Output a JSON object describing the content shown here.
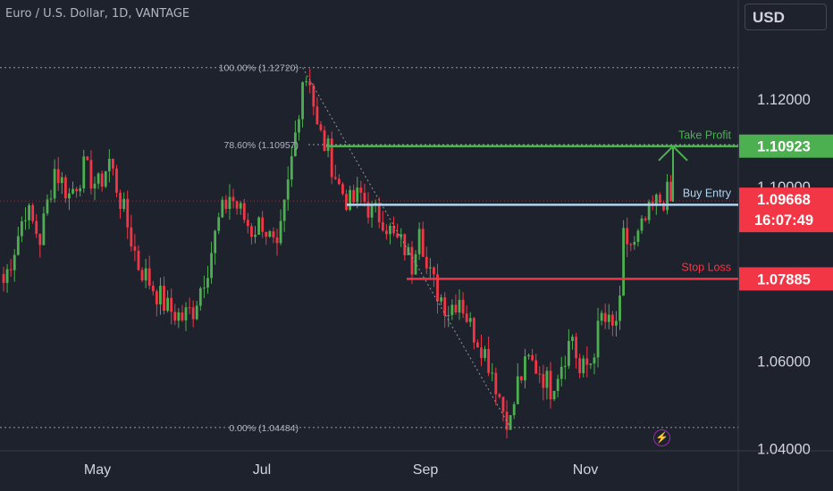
{
  "header": {
    "title": "Euro / U.S. Dollar, 1D, VANTAGE",
    "currency_button": "USD"
  },
  "chart_data": {
    "type": "candlestick",
    "title": "Euro / U.S. Dollar, 1D, VANTAGE",
    "ylim": [
      1.0395,
      1.1345
    ],
    "y_ticks": [
      "1.12000",
      "1.10000",
      "1.06000",
      "1.04000"
    ],
    "x_ticks": [
      "May",
      "Jul",
      "Sep",
      "Nov"
    ],
    "fibonacci": [
      {
        "label": "100.00% (1.12720)",
        "value": 1.1272
      },
      {
        "label": "78.60% (1.10957)",
        "value": 1.10957
      },
      {
        "label": "0.00% (1.04484)",
        "value": 1.04484
      }
    ],
    "levels": [
      {
        "name": "Take Profit",
        "value": 1.10923,
        "price_label": "1.10923",
        "color": "#4caf50"
      },
      {
        "name": "Buy Entry",
        "value": 1.0958,
        "price_label": "",
        "color": "#b3d4f0"
      },
      {
        "name": "Stop Loss",
        "value": 1.07885,
        "price_label": "1.07885",
        "color": "#f23645"
      }
    ],
    "current_price": {
      "value": 1.09668,
      "label": "1.09668",
      "countdown": "16:07:49",
      "color": "#f23645"
    },
    "anchor_points": [
      {
        "i": 0,
        "v": 1.078
      },
      {
        "i": 3,
        "v": 1.086
      },
      {
        "i": 6,
        "v": 1.095
      },
      {
        "i": 10,
        "v": 1.088
      },
      {
        "i": 14,
        "v": 1.104
      },
      {
        "i": 18,
        "v": 1.098
      },
      {
        "i": 22,
        "v": 1.104
      },
      {
        "i": 26,
        "v": 1.1
      },
      {
        "i": 29,
        "v": 1.106
      },
      {
        "i": 33,
        "v": 1.094
      },
      {
        "i": 37,
        "v": 1.082
      },
      {
        "i": 41,
        "v": 1.077
      },
      {
        "i": 45,
        "v": 1.072
      },
      {
        "i": 49,
        "v": 1.07
      },
      {
        "i": 52,
        "v": 1.072
      },
      {
        "i": 56,
        "v": 1.082
      },
      {
        "i": 59,
        "v": 1.092
      },
      {
        "i": 62,
        "v": 1.098
      },
      {
        "i": 65,
        "v": 1.094
      },
      {
        "i": 68,
        "v": 1.09
      },
      {
        "i": 71,
        "v": 1.092
      },
      {
        "i": 75,
        "v": 1.084
      },
      {
        "i": 78,
        "v": 1.1
      },
      {
        "i": 80,
        "v": 1.112
      },
      {
        "i": 82,
        "v": 1.125
      },
      {
        "i": 84,
        "v": 1.125
      },
      {
        "i": 86,
        "v": 1.113
      },
      {
        "i": 89,
        "v": 1.108
      },
      {
        "i": 92,
        "v": 1.1
      },
      {
        "i": 95,
        "v": 1.096
      },
      {
        "i": 98,
        "v": 1.098
      },
      {
        "i": 101,
        "v": 1.094
      },
      {
        "i": 104,
        "v": 1.093
      },
      {
        "i": 107,
        "v": 1.088
      },
      {
        "i": 110,
        "v": 1.086
      },
      {
        "i": 112,
        "v": 1.082
      },
      {
        "i": 114,
        "v": 1.093
      },
      {
        "i": 116,
        "v": 1.081
      },
      {
        "i": 119,
        "v": 1.076
      },
      {
        "i": 122,
        "v": 1.072
      },
      {
        "i": 125,
        "v": 1.075
      },
      {
        "i": 128,
        "v": 1.068
      },
      {
        "i": 131,
        "v": 1.064
      },
      {
        "i": 134,
        "v": 1.058
      },
      {
        "i": 137,
        "v": 1.049
      },
      {
        "i": 139,
        "v": 1.046
      },
      {
        "i": 141,
        "v": 1.055
      },
      {
        "i": 144,
        "v": 1.06
      },
      {
        "i": 147,
        "v": 1.058
      },
      {
        "i": 150,
        "v": 1.054
      },
      {
        "i": 153,
        "v": 1.06
      },
      {
        "i": 156,
        "v": 1.066
      },
      {
        "i": 158,
        "v": 1.057
      },
      {
        "i": 161,
        "v": 1.06
      },
      {
        "i": 164,
        "v": 1.07
      },
      {
        "i": 167,
        "v": 1.067
      },
      {
        "i": 169,
        "v": 1.072
      },
      {
        "i": 170,
        "v": 1.088
      },
      {
        "i": 173,
        "v": 1.086
      },
      {
        "i": 176,
        "v": 1.092
      },
      {
        "i": 179,
        "v": 1.096
      },
      {
        "i": 182,
        "v": 1.098
      },
      {
        "i": 183,
        "v": 1.0967
      }
    ],
    "trade_arrow": {
      "from": 1.0965,
      "to": 1.1092
    }
  }
}
